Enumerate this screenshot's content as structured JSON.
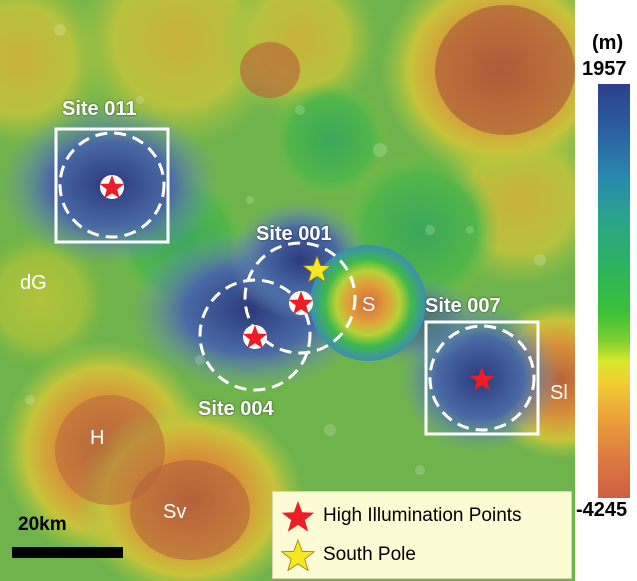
{
  "map": {
    "sites": [
      {
        "label": "Site 011"
      },
      {
        "label": "Site 001"
      },
      {
        "label": "Site 004"
      },
      {
        "label": "Site 007"
      }
    ],
    "craters": [
      {
        "label": "dG"
      },
      {
        "label": "S"
      },
      {
        "label": "H"
      },
      {
        "label": "Sv"
      },
      {
        "label": "Sl"
      }
    ],
    "colors": {
      "high_illumination_star": "#ee1c24",
      "south_pole_star": "#f7e623",
      "site_box": "#ffffff"
    }
  },
  "scalebar": {
    "label": "20km"
  },
  "legend": {
    "items": [
      {
        "label": "High Illumination Points",
        "icon": "red-star-icon"
      },
      {
        "label": "South Pole",
        "icon": "yellow-star-icon"
      }
    ]
  },
  "colorbar": {
    "unit": "(m)",
    "max": "1957",
    "min": "-4245",
    "colors": [
      "#2c3f8c",
      "#2aa38d",
      "#3bc03a",
      "#f1cf33",
      "#cf5f44"
    ]
  }
}
